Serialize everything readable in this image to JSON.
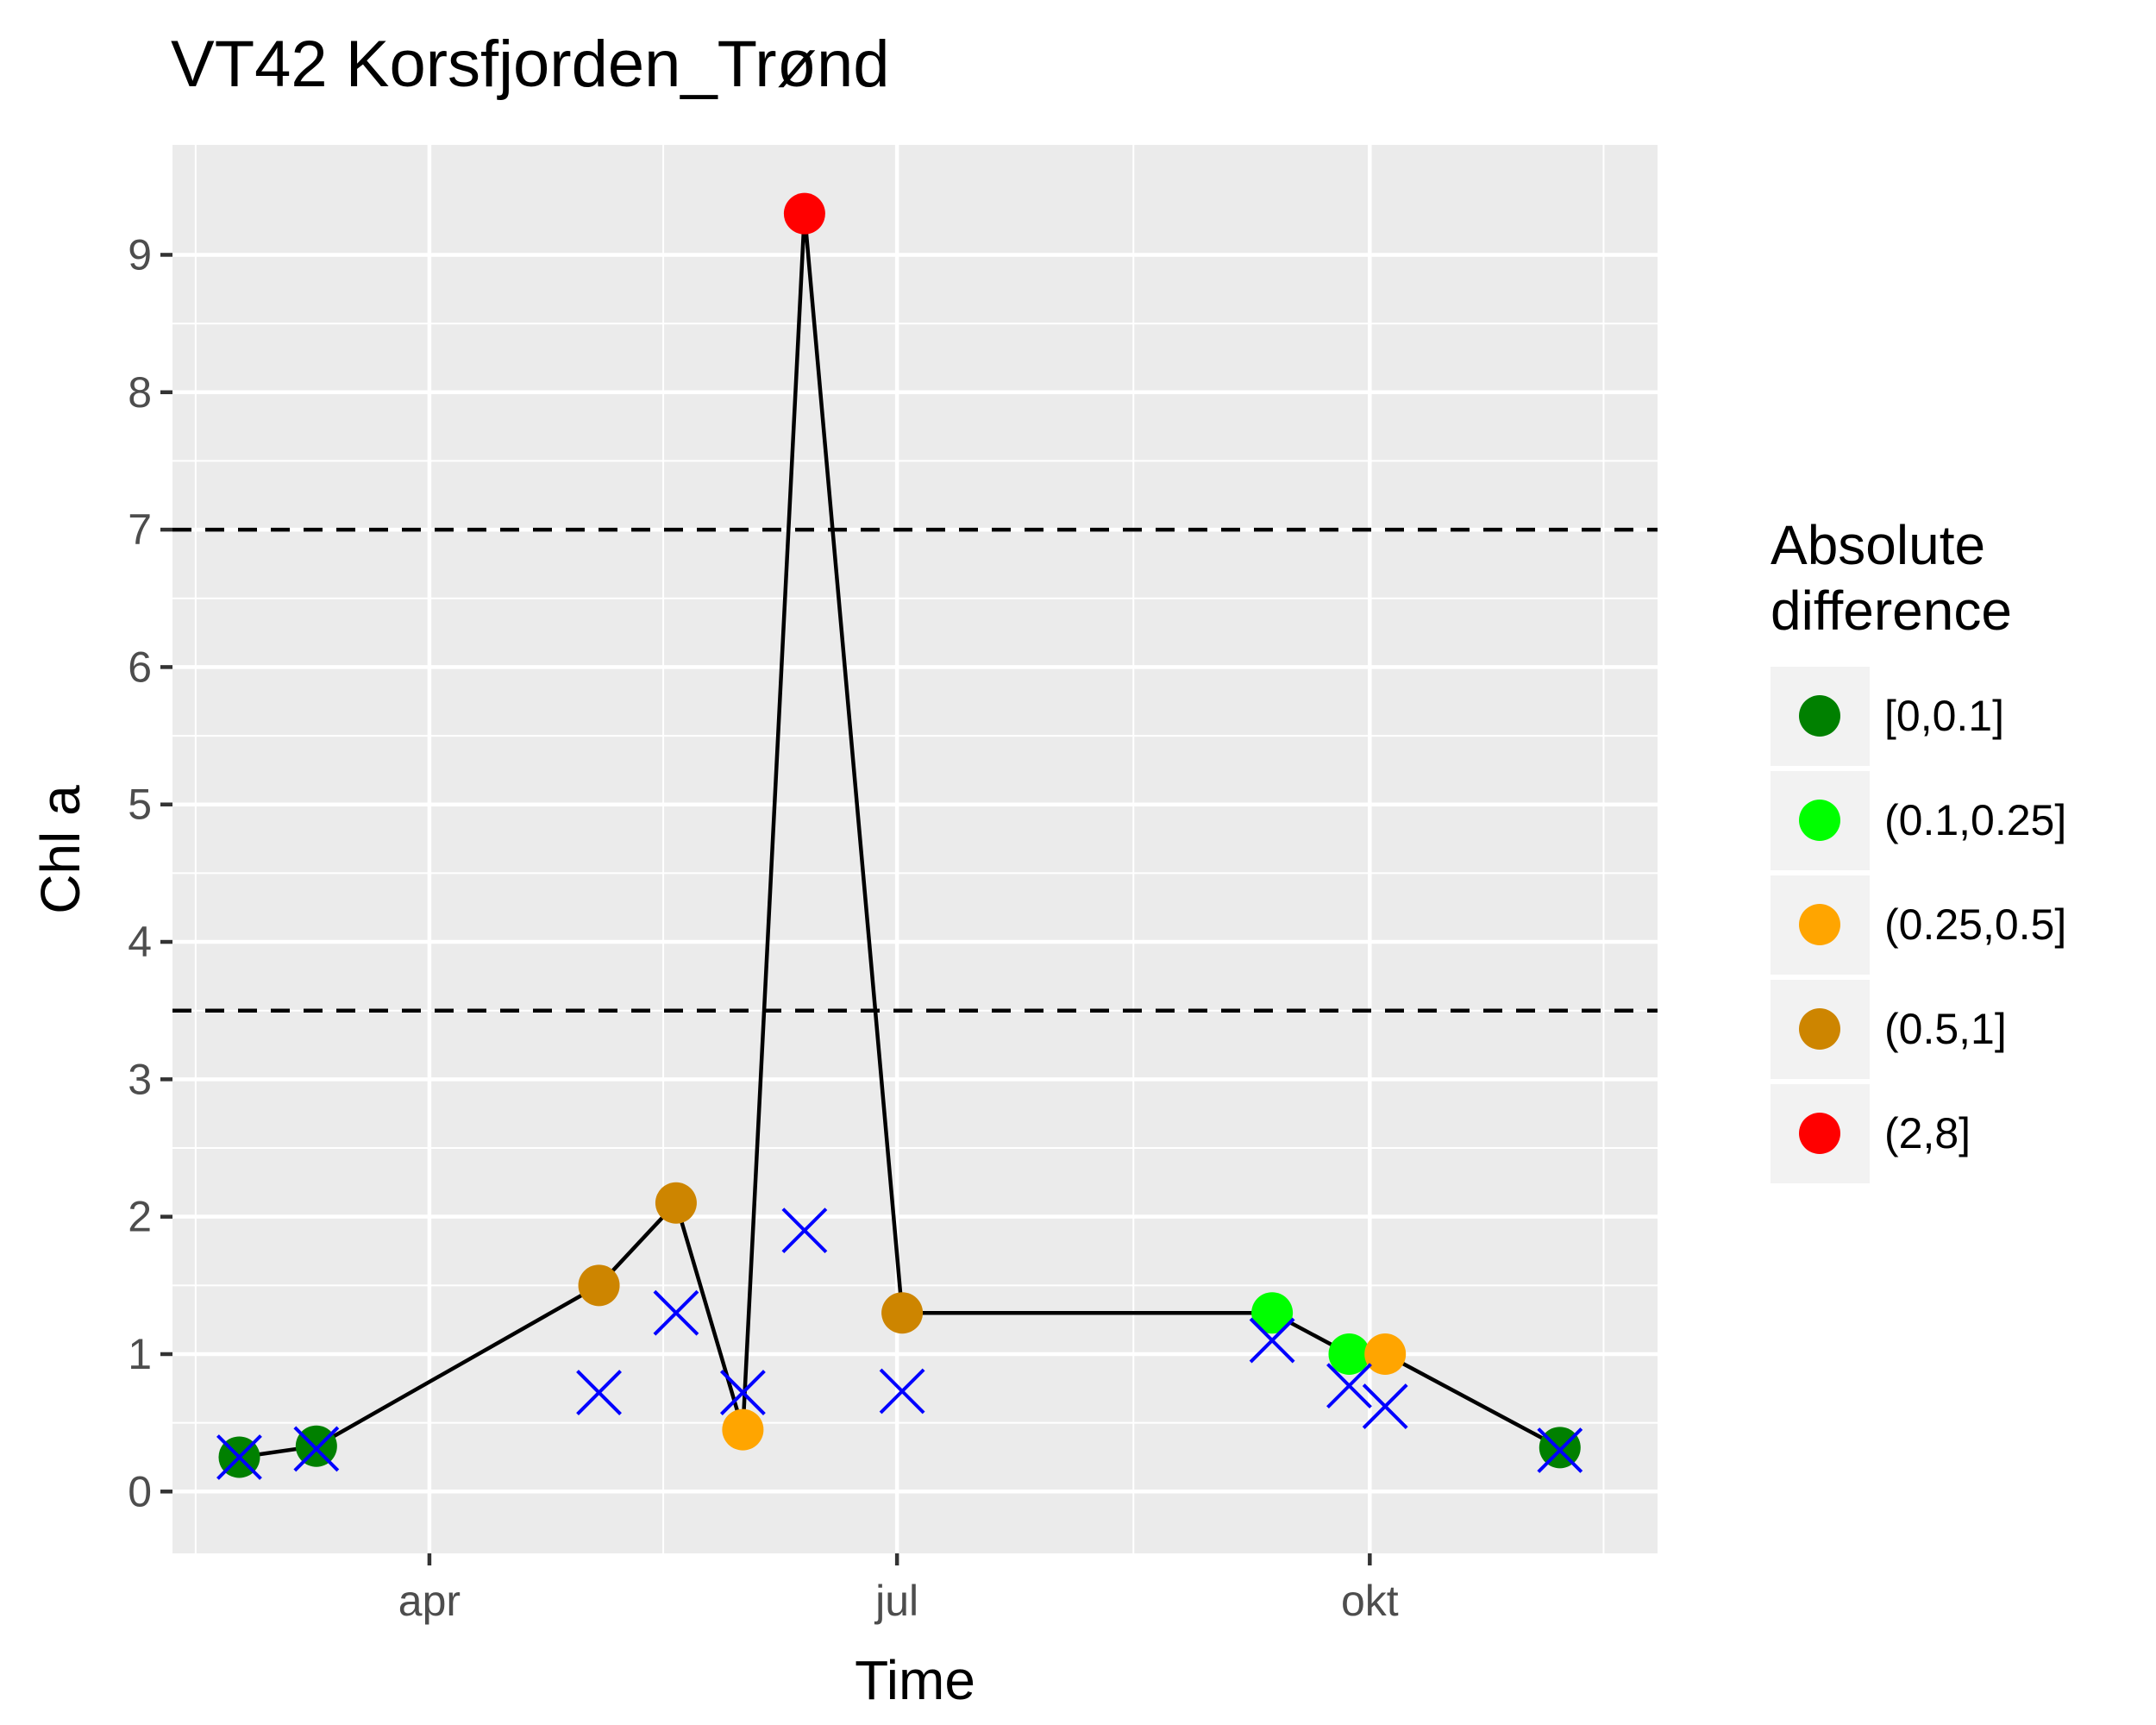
{
  "chart_data": {
    "type": "scatter",
    "title": "VT42 Korsfjorden_Trønd",
    "xlabel": "Time",
    "ylabel": "Chl a",
    "x_type": "date",
    "xlim": [
      "2017-02-10",
      "2017-11-26"
    ],
    "ylim": [
      -0.45,
      9.8
    ],
    "x_ticks": [
      {
        "value": "2017-04-01",
        "label": "apr"
      },
      {
        "value": "2017-07-01",
        "label": "jul"
      },
      {
        "value": "2017-10-01",
        "label": "okt"
      }
    ],
    "y_ticks": [
      0,
      1,
      2,
      3,
      4,
      5,
      6,
      7,
      8,
      9
    ],
    "grid": true,
    "legend": {
      "title_lines": [
        "Absolute",
        "difference"
      ],
      "position": "right",
      "items": [
        {
          "label": "[0,0.1]",
          "color": "#008000"
        },
        {
          "label": "(0.1,0.25]",
          "color": "#00ff00"
        },
        {
          "label": "(0.25,0.5]",
          "color": "#ffa500"
        },
        {
          "label": "(0.5,1]",
          "color": "#cd8500"
        },
        {
          "label": "(2,8]",
          "color": "#ff0000"
        }
      ]
    },
    "reference_lines": [
      3.5,
      7
    ],
    "series": [
      {
        "type": "line+points",
        "color_by": "category",
        "points": [
          {
            "x": "2017-02-23",
            "y": 0.25,
            "category": "[0,0.1]"
          },
          {
            "x": "2017-03-10",
            "y": 0.33,
            "category": "[0,0.1]"
          },
          {
            "x": "2017-05-04",
            "y": 1.5,
            "category": "(0.5,1]"
          },
          {
            "x": "2017-05-19",
            "y": 2.1,
            "category": "(0.5,1]"
          },
          {
            "x": "2017-06-01",
            "y": 0.45,
            "category": "(0.25,0.5]"
          },
          {
            "x": "2017-06-13",
            "y": 9.3,
            "category": "(2,8]"
          },
          {
            "x": "2017-07-02",
            "y": 1.3,
            "category": "(0.5,1]"
          },
          {
            "x": "2017-09-12",
            "y": 1.3,
            "category": "(0.1,0.25]"
          },
          {
            "x": "2017-09-27",
            "y": 1.0,
            "category": "(0.1,0.25]"
          },
          {
            "x": "2017-10-04",
            "y": 1.0,
            "category": "(0.25,0.5]"
          },
          {
            "x": "2017-11-07",
            "y": 0.32,
            "category": "[0,0.1]"
          }
        ]
      },
      {
        "type": "scatter",
        "marker": "x",
        "color": "#0000ff",
        "points": [
          {
            "x": "2017-02-23",
            "y": 0.25
          },
          {
            "x": "2017-03-10",
            "y": 0.31
          },
          {
            "x": "2017-05-04",
            "y": 0.72
          },
          {
            "x": "2017-05-19",
            "y": 1.3
          },
          {
            "x": "2017-06-01",
            "y": 0.72
          },
          {
            "x": "2017-06-13",
            "y": 1.9
          },
          {
            "x": "2017-07-02",
            "y": 0.73
          },
          {
            "x": "2017-09-12",
            "y": 1.1
          },
          {
            "x": "2017-09-27",
            "y": 0.77
          },
          {
            "x": "2017-10-04",
            "y": 0.62
          },
          {
            "x": "2017-11-07",
            "y": 0.3
          }
        ]
      }
    ]
  }
}
